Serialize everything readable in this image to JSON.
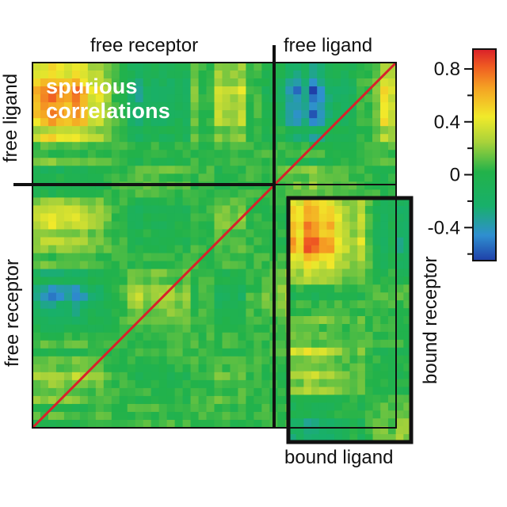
{
  "chart_data": {
    "type": "heatmap",
    "title": "",
    "colormap": "jet",
    "colorbar": {
      "range": [
        -0.65,
        0.95
      ],
      "ticks": [
        0.8,
        0.4,
        0,
        -0.4
      ],
      "tick_labels": [
        "0.8",
        "0.4",
        "0",
        "-0.4"
      ]
    },
    "diagonal_value": 0.95,
    "annotation": "spurious correlations",
    "panels": [
      {
        "id": "free",
        "labels": {
          "top_left": "free receptor",
          "top_right": "free ligand",
          "left_top": "free ligand",
          "left_bottom": "free receptor"
        },
        "blocks": [
          {
            "rows": "free ligand",
            "cols": "free receptor",
            "description": "spurious correlations"
          },
          {
            "rows": "free ligand",
            "cols": "free ligand"
          },
          {
            "rows": "free receptor",
            "cols": "free receptor"
          }
        ]
      },
      {
        "id": "bound",
        "labels": {
          "bottom": "bound ligand",
          "right": "bound receptor"
        },
        "blocks": [
          {
            "rows": "bound receptor",
            "cols": "bound ligand"
          }
        ]
      }
    ]
  }
}
